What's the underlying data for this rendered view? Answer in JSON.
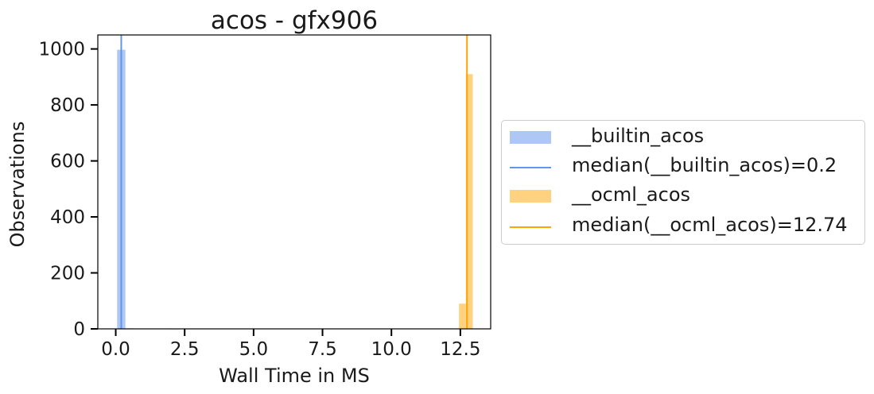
{
  "chart_data": {
    "type": "bar",
    "title": "acos - gfx906",
    "xlabel": "Wall Time in MS",
    "ylabel": "Observations",
    "xlim": [
      -0.65,
      13.6
    ],
    "ylim": [
      0,
      1050
    ],
    "xticks": [
      0.0,
      2.5,
      5.0,
      7.5,
      10.0,
      12.5
    ],
    "xtick_labels": [
      "0.0",
      "2.5",
      "5.0",
      "7.5",
      "10.0",
      "12.5"
    ],
    "yticks": [
      0,
      200,
      400,
      600,
      800,
      1000
    ],
    "ytick_labels": [
      "0",
      "200",
      "400",
      "600",
      "800",
      "1000"
    ],
    "grid": false,
    "legend_position": "outside-right",
    "series": [
      {
        "name": "__builtin_acos",
        "kind": "hist",
        "color": "#aec7f5",
        "bins": [
          {
            "x0": 0.05,
            "x1": 0.35,
            "count": 997
          },
          {
            "x0": 0.35,
            "x1": 0.65,
            "count": 2
          },
          {
            "x0": 1.95,
            "x1": 2.25,
            "count": 1
          }
        ]
      },
      {
        "name": "median(__builtin_acos)=0.2",
        "kind": "vline",
        "color": "#6495ed",
        "x": 0.2
      },
      {
        "name": "__ocml_acos",
        "kind": "hist",
        "color": "#ffd27f",
        "bins": [
          {
            "x0": 12.45,
            "x1": 12.7,
            "count": 90
          },
          {
            "x0": 12.7,
            "x1": 12.95,
            "count": 910
          }
        ]
      },
      {
        "name": "median(__ocml_acos)=12.74",
        "kind": "vline",
        "color": "#ffa500",
        "x": 12.74
      }
    ]
  }
}
